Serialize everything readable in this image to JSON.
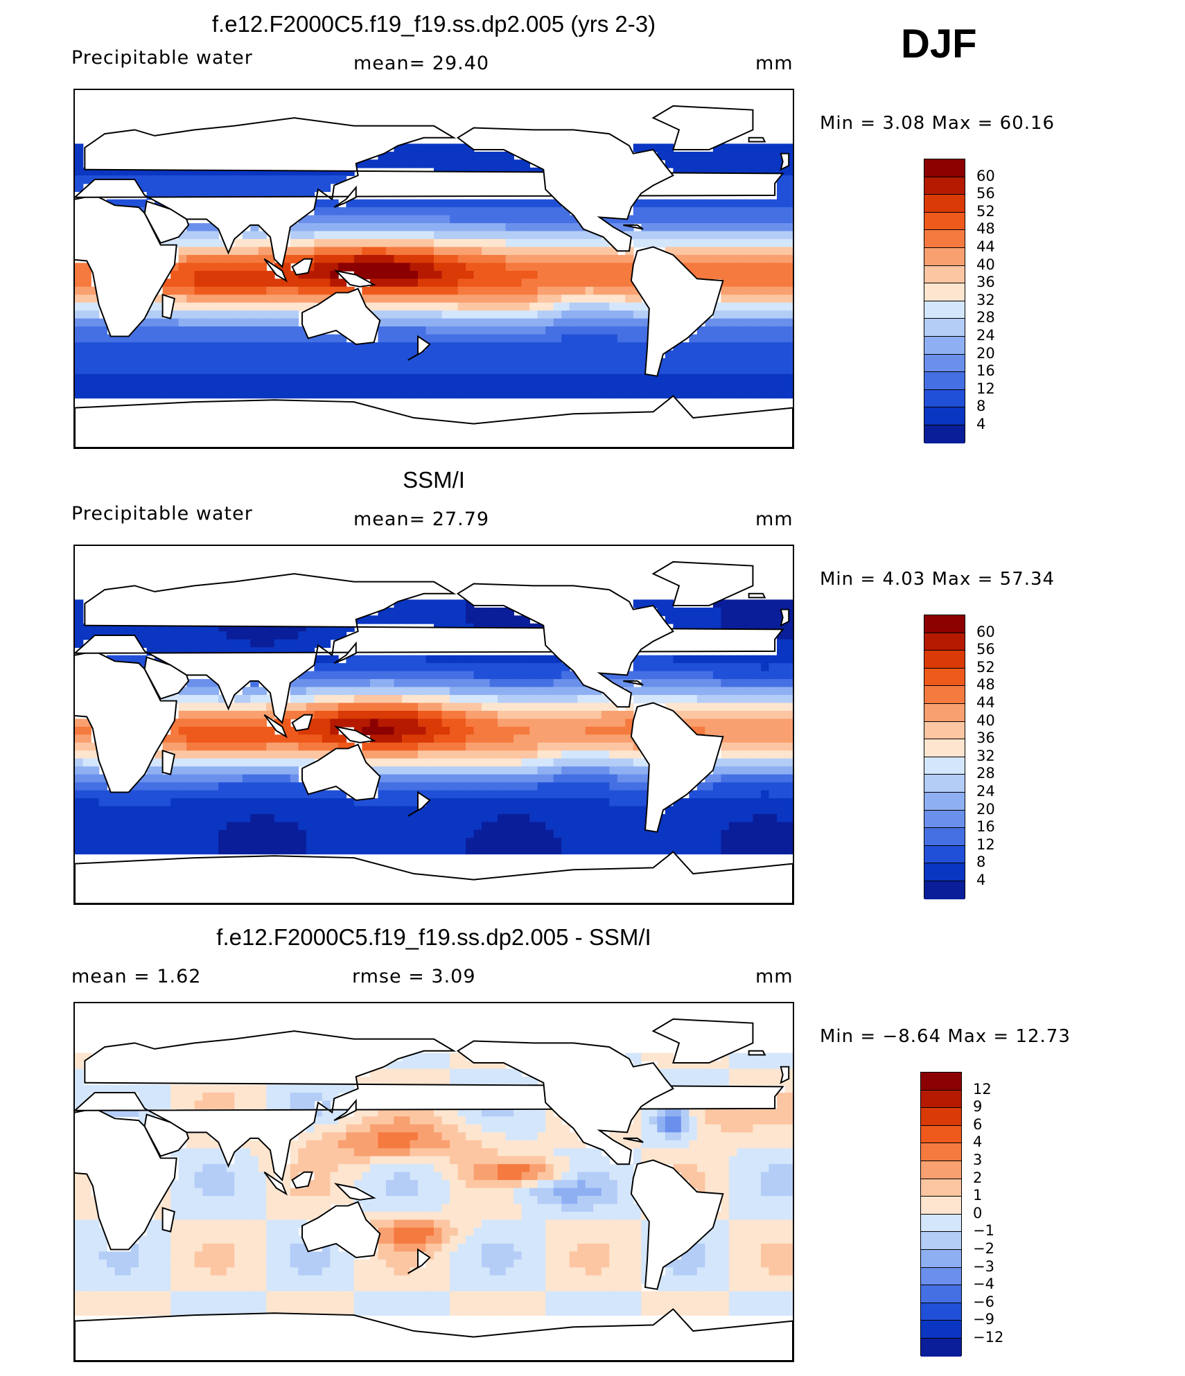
{
  "season_label": "DJF",
  "panels": [
    {
      "title": "f.e12.F2000C5.f19_f19.ss.dp2.005 (yrs 2-3)",
      "left_label": "Precipitable  water",
      "center_label": "mean=   29.40",
      "units": "mm",
      "min_max": "Min  =     3.08  Max  =    60.16",
      "colorbar": {
        "labels": [
          "60",
          "56",
          "52",
          "48",
          "44",
          "40",
          "36",
          "32",
          "28",
          "24",
          "20",
          "16",
          "12",
          "8",
          "4"
        ],
        "colors": [
          "#8b0000",
          "#b51a00",
          "#d93a06",
          "#ee5a1c",
          "#f57a3f",
          "#f9a070",
          "#fcc6a2",
          "#fde5cf",
          "#d4e6fb",
          "#b3cdf7",
          "#8eb0f2",
          "#6a90ec",
          "#4570e3",
          "#2150d8",
          "#0a36c2",
          "#0a1e9a"
        ]
      }
    },
    {
      "title": "SSM/I",
      "left_label": "Precipitable  water",
      "center_label": "mean=   27.79",
      "units": "mm",
      "min_max": "Min  =     4.03  Max  =    57.34",
      "colorbar": {
        "labels": [
          "60",
          "56",
          "52",
          "48",
          "44",
          "40",
          "36",
          "32",
          "28",
          "24",
          "20",
          "16",
          "12",
          "8",
          "4"
        ],
        "colors": [
          "#8b0000",
          "#b51a00",
          "#d93a06",
          "#ee5a1c",
          "#f57a3f",
          "#f9a070",
          "#fcc6a2",
          "#fde5cf",
          "#d4e6fb",
          "#b3cdf7",
          "#8eb0f2",
          "#6a90ec",
          "#4570e3",
          "#2150d8",
          "#0a36c2",
          "#0a1e9a"
        ]
      }
    },
    {
      "title": "f.e12.F2000C5.f19_f19.ss.dp2.005 - SSM/I",
      "left_label": "mean  =      1.62",
      "center_label": "rmse  =      3.09",
      "units": "mm",
      "min_max": "Min  =   −8.64  Max  =     12.73",
      "colorbar": {
        "labels": [
          "12",
          "9",
          "6",
          "4",
          "3",
          "2",
          "1",
          "0",
          "−1",
          "−2",
          "−3",
          "−4",
          "−6",
          "−9",
          "−12"
        ],
        "colors": [
          "#8b0000",
          "#b51a00",
          "#d93a06",
          "#ee5a1c",
          "#f57a3f",
          "#f9a070",
          "#fcc6a2",
          "#fde5cf",
          "#d4e6fb",
          "#b3cdf7",
          "#8eb0f2",
          "#6a90ec",
          "#4570e3",
          "#2150d8",
          "#0a36c2",
          "#0a1e9a"
        ]
      }
    }
  ]
}
